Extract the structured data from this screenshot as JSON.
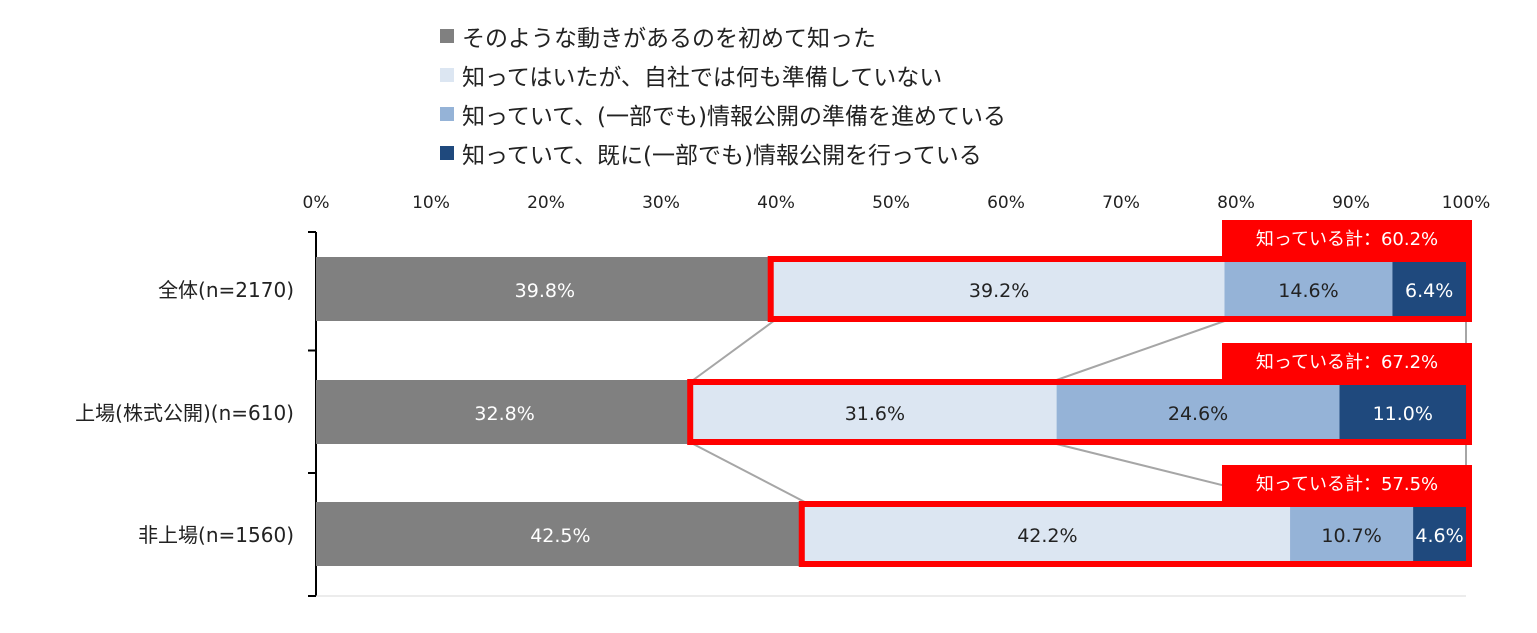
{
  "chart_data": {
    "type": "bar",
    "stacked": true,
    "orientation": "horizontal",
    "xlim": [
      0,
      100
    ],
    "x_ticks": [
      "0%",
      "10%",
      "20%",
      "30%",
      "40%",
      "50%",
      "60%",
      "70%",
      "80%",
      "90%",
      "100%"
    ],
    "categories": [
      "全体(n=2170)",
      "上場(株式公開)(n=610)",
      "非上場(n=1560)"
    ],
    "series": [
      {
        "name": "そのような動きがあるのを初めて知った",
        "color": "#808080",
        "label_color": "#ffffff",
        "values": [
          39.8,
          32.8,
          42.5
        ],
        "labels": [
          "39.8%",
          "32.8%",
          "42.5%"
        ]
      },
      {
        "name": "知ってはいたが、自社では何も準備していない",
        "color": "#dce6f2",
        "label_color": "#222222",
        "values": [
          39.2,
          31.6,
          42.2
        ],
        "labels": [
          "39.2%",
          "31.6%",
          "42.2%"
        ]
      },
      {
        "name": "知っていて、(一部でも)情報公開の準備を進めている",
        "color": "#95b3d7",
        "label_color": "#222222",
        "values": [
          14.6,
          24.6,
          10.7
        ],
        "labels": [
          "14.6%",
          "24.6%",
          "10.7%"
        ]
      },
      {
        "name": "知っていて、既に(一部でも)情報公開を行っている",
        "color": "#1f497d",
        "label_color": "#ffffff",
        "values": [
          6.4,
          11.0,
          4.6
        ],
        "labels": [
          "6.4%",
          "11.0%",
          "4.6%"
        ]
      }
    ],
    "annotations": [
      "知っている計：60.2%",
      "知っている計：67.2%",
      "知っている計：57.5%"
    ],
    "highlight_color": "#ff0000",
    "connector_color": "#a6a6a6",
    "legend_position": "top"
  }
}
